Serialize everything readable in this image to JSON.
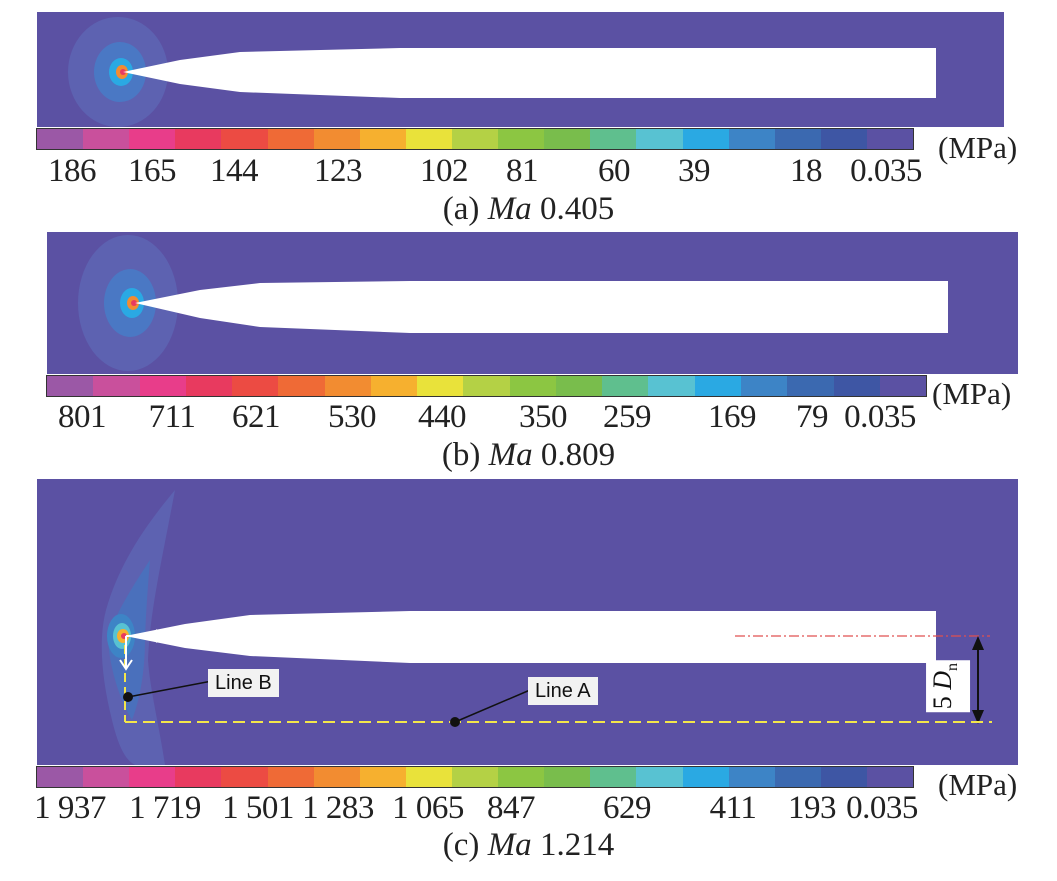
{
  "colors": {
    "background_field": "#5b51a3",
    "jet_region": "#ffffff",
    "colorbar": [
      "#9b58a6",
      "#c9509c",
      "#e83d8a",
      "#e83a5f",
      "#ec4b43",
      "#ef6a36",
      "#f28c31",
      "#f6b02f",
      "#e9e23a",
      "#b4d145",
      "#8cc642",
      "#79bd4c",
      "#5fbf8e",
      "#58c2d2",
      "#2aa9e3",
      "#3d84c6",
      "#3b69b0",
      "#3e56a4",
      "#5b51a3"
    ]
  },
  "unit_label": "(MPa)",
  "panels": [
    {
      "id": "a",
      "caption_prefix": "(a) ",
      "caption_var": "Ma",
      "caption_value": " 0.405",
      "ticks": [
        "186",
        "165",
        "144",
        "123",
        "102",
        "81",
        "60",
        "39",
        "18",
        "0.035"
      ]
    },
    {
      "id": "b",
      "caption_prefix": "(b) ",
      "caption_var": "Ma",
      "caption_value": " 0.809",
      "ticks": [
        "801",
        "711",
        "621",
        "530",
        "440",
        "350",
        "259",
        "169",
        "79",
        "0.035"
      ]
    },
    {
      "id": "c",
      "caption_prefix": "(c) ",
      "caption_var": "Ma",
      "caption_value": " 1.214",
      "ticks": [
        "1 937",
        "1 719",
        "1 501",
        "1 283",
        "1 065",
        "847",
        "629",
        "411",
        "193",
        "0.035"
      ],
      "callouts": {
        "line_b": "Line B",
        "line_a": "Line A"
      },
      "dimension": {
        "value": "5 ",
        "var": "D",
        "sub": "n"
      }
    }
  ]
}
